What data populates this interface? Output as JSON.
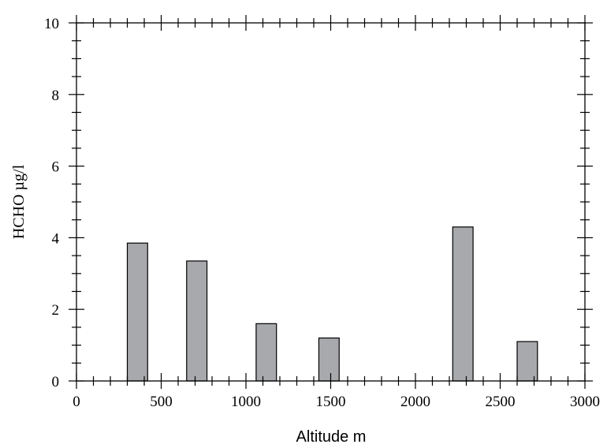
{
  "chart_data": {
    "type": "bar",
    "title": "",
    "xlabel": "Altitude m",
    "ylabel": "HCHO µg/l",
    "xlim": [
      0,
      3000
    ],
    "ylim": [
      0,
      10
    ],
    "x_ticks": [
      0,
      500,
      1000,
      1500,
      2000,
      2500,
      3000
    ],
    "y_ticks": [
      0,
      2,
      4,
      6,
      8,
      10
    ],
    "x_tick_labels": [
      "0",
      "500",
      "1000",
      "1500",
      "2000",
      "2500",
      "3000"
    ],
    "y_tick_labels": [
      "0",
      "2",
      "4",
      "6",
      "8",
      "10"
    ],
    "grid": false,
    "bar_color": "#a7a9ac",
    "bar_width": 120,
    "x": [
      360,
      710,
      1120,
      1490,
      2280,
      2660
    ],
    "values": [
      3.85,
      3.35,
      1.6,
      1.2,
      4.3,
      1.1
    ]
  }
}
